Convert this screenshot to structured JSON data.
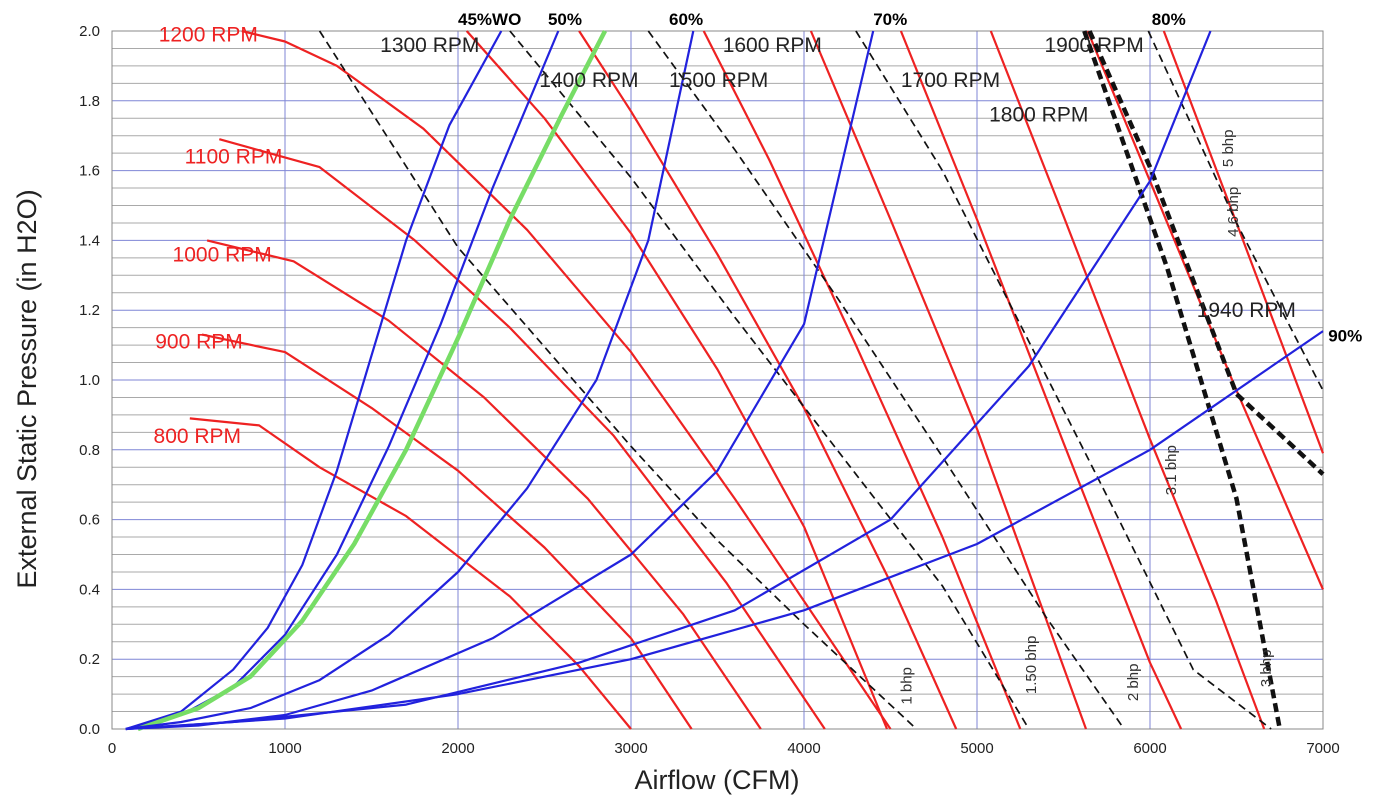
{
  "chart_data": {
    "type": "line",
    "title": "",
    "xlabel": "Airflow (CFM)",
    "ylabel": "External Static Pressure (in H2O)",
    "xlim": [
      0,
      7000
    ],
    "ylim": [
      0,
      2.0
    ],
    "x_ticks": [
      "0",
      "1000",
      "2000",
      "3000",
      "4000",
      "5000",
      "6000",
      "7000"
    ],
    "y_ticks": [
      "0.0",
      "0.2",
      "0.4",
      "0.6",
      "0.8",
      "1.0",
      "1.2",
      "1.4",
      "1.6",
      "1.8",
      "2.0"
    ],
    "grid": true,
    "colors": {
      "rpm": "#ee2222",
      "open": "#2222dd",
      "bhp": "#111111",
      "highlight": "#77dd66",
      "grid_major": "#7f86d6",
      "grid_minor": "#a9a9a9"
    },
    "rpm_curves": [
      {
        "name": "800 RPM",
        "label": "800 RPM",
        "label_at": [
          240,
          0.82
        ],
        "label_color": "#ee2222",
        "points": [
          [
            450,
            0.89
          ],
          [
            850,
            0.87
          ],
          [
            1200,
            0.75
          ],
          [
            1700,
            0.61
          ],
          [
            2300,
            0.38
          ],
          [
            2700,
            0.18
          ],
          [
            3000,
            0.0
          ]
        ]
      },
      {
        "name": "900 RPM",
        "label": "900 RPM",
        "label_at": [
          250,
          1.09
        ],
        "label_color": "#ee2222",
        "points": [
          [
            520,
            1.13
          ],
          [
            1000,
            1.08
          ],
          [
            1500,
            0.92
          ],
          [
            2000,
            0.74
          ],
          [
            2500,
            0.52
          ],
          [
            3000,
            0.26
          ],
          [
            3350,
            0.0
          ]
        ]
      },
      {
        "name": "1000 RPM",
        "label": "1000 RPM",
        "label_at": [
          350,
          1.34
        ],
        "label_color": "#ee2222",
        "points": [
          [
            550,
            1.4
          ],
          [
            1050,
            1.34
          ],
          [
            1600,
            1.17
          ],
          [
            2150,
            0.95
          ],
          [
            2750,
            0.66
          ],
          [
            3300,
            0.33
          ],
          [
            3750,
            0.0
          ]
        ]
      },
      {
        "name": "1100 RPM",
        "label": "1100 RPM",
        "label_at": [
          420,
          1.62
        ],
        "label_color": "#ee2222",
        "points": [
          [
            620,
            1.69
          ],
          [
            1200,
            1.61
          ],
          [
            1750,
            1.4
          ],
          [
            2300,
            1.15
          ],
          [
            2900,
            0.84
          ],
          [
            3550,
            0.42
          ],
          [
            4120,
            0.0
          ]
        ]
      },
      {
        "name": "1200 RPM",
        "label": "1200 RPM",
        "label_at": [
          270,
          1.97
        ],
        "label_color": "#ee2222",
        "points": [
          [
            750,
            2.0
          ],
          [
            1000,
            1.97
          ],
          [
            1300,
            1.9
          ],
          [
            1800,
            1.72
          ],
          [
            2400,
            1.43
          ],
          [
            3000,
            1.08
          ],
          [
            3600,
            0.66
          ],
          [
            4500,
            0.0
          ]
        ]
      },
      {
        "name": "1300 RPM",
        "label": "1300 RPM",
        "label_at": [
          1550,
          1.94
        ],
        "label_color": "#222222",
        "points": [
          [
            2050,
            2.0
          ],
          [
            2500,
            1.75
          ],
          [
            3000,
            1.42
          ],
          [
            3500,
            1.03
          ],
          [
            4000,
            0.58
          ],
          [
            4480,
            0.0
          ]
        ]
      },
      {
        "name": "1400 RPM",
        "label": "1400 RPM",
        "label_at": [
          2470,
          1.84
        ],
        "label_color": "#222222",
        "points": [
          [
            2700,
            2.0
          ],
          [
            3000,
            1.77
          ],
          [
            3500,
            1.36
          ],
          [
            4000,
            0.92
          ],
          [
            4500,
            0.42
          ],
          [
            4880,
            0.0
          ]
        ]
      },
      {
        "name": "1500 RPM",
        "label": "1500 RPM",
        "label_at": [
          3220,
          1.84
        ],
        "label_color": "#222222",
        "points": [
          [
            3420,
            2.0
          ],
          [
            3800,
            1.63
          ],
          [
            4300,
            1.1
          ],
          [
            4800,
            0.55
          ],
          [
            5250,
            0.0
          ]
        ]
      },
      {
        "name": "1600 RPM",
        "label": "1600 RPM",
        "label_at": [
          3530,
          1.94
        ],
        "label_color": "#222222",
        "points": [
          [
            4040,
            2.0
          ],
          [
            4500,
            1.46
          ],
          [
            5000,
            0.86
          ],
          [
            5630,
            0.0
          ]
        ]
      },
      {
        "name": "1700 RPM",
        "label": "1700 RPM",
        "label_at": [
          4560,
          1.84
        ],
        "label_color": "#222222",
        "points": [
          [
            4560,
            2.0
          ],
          [
            5000,
            1.46
          ],
          [
            5500,
            0.82
          ],
          [
            6000,
            0.19
          ],
          [
            6180,
            0.0
          ]
        ]
      },
      {
        "name": "1800 RPM",
        "label": "1800 RPM",
        "label_at": [
          5070,
          1.74
        ],
        "label_color": "#222222",
        "points": [
          [
            5080,
            2.0
          ],
          [
            5500,
            1.47
          ],
          [
            6000,
            0.83
          ],
          [
            6380,
            0.37
          ],
          [
            6660,
            0.0
          ]
        ]
      },
      {
        "name": "1900 RPM",
        "label": "1900 RPM",
        "label_at": [
          5390,
          1.94
        ],
        "label_color": "#222222",
        "points": [
          [
            5640,
            2.0
          ],
          [
            6000,
            1.57
          ],
          [
            6500,
            0.97
          ],
          [
            7000,
            0.4
          ]
        ]
      },
      {
        "name": "1940 RPM",
        "label": "1940 RPM",
        "label_at": [
          6270,
          1.18
        ],
        "label_color": "#222222",
        "points": [
          [
            6080,
            2.0
          ],
          [
            6500,
            1.45
          ],
          [
            7000,
            0.79
          ]
        ]
      }
    ],
    "wide_open_curves": [
      {
        "name": "45%WO",
        "label": "45%WO",
        "label_at": [
          2000,
          2.017
        ],
        "points": [
          [
            80,
            0.0
          ],
          [
            400,
            0.05
          ],
          [
            700,
            0.17
          ],
          [
            900,
            0.29
          ],
          [
            1100,
            0.47
          ],
          [
            1300,
            0.74
          ],
          [
            1500,
            1.07
          ],
          [
            1700,
            1.4
          ],
          [
            1950,
            1.73
          ],
          [
            2250,
            2.0
          ]
        ]
      },
      {
        "name": "50%",
        "label": "50%",
        "label_at": [
          2520,
          2.017
        ],
        "points": [
          [
            80,
            0.0
          ],
          [
            400,
            0.04
          ],
          [
            700,
            0.12
          ],
          [
            1000,
            0.27
          ],
          [
            1300,
            0.5
          ],
          [
            1600,
            0.81
          ],
          [
            1900,
            1.16
          ],
          [
            2200,
            1.55
          ],
          [
            2580,
            2.0
          ]
        ]
      },
      {
        "name": "WO highlight",
        "highlight": true,
        "points": [
          [
            150,
            0.0
          ],
          [
            500,
            0.06
          ],
          [
            800,
            0.15
          ],
          [
            1100,
            0.31
          ],
          [
            1400,
            0.53
          ],
          [
            1700,
            0.8
          ],
          [
            2000,
            1.12
          ],
          [
            2300,
            1.46
          ],
          [
            2600,
            1.76
          ],
          [
            2850,
            2.0
          ]
        ]
      },
      {
        "name": "60%",
        "label": "60%",
        "label_at": [
          3220,
          2.017
        ],
        "points": [
          [
            80,
            0.0
          ],
          [
            400,
            0.02
          ],
          [
            800,
            0.06
          ],
          [
            1200,
            0.14
          ],
          [
            1600,
            0.27
          ],
          [
            2000,
            0.45
          ],
          [
            2400,
            0.69
          ],
          [
            2800,
            1.0
          ],
          [
            3100,
            1.4
          ],
          [
            3360,
            2.0
          ]
        ]
      },
      {
        "name": "70%",
        "label": "70%",
        "label_at": [
          4400,
          2.017
        ],
        "points": [
          [
            80,
            0.0
          ],
          [
            500,
            0.01
          ],
          [
            1000,
            0.04
          ],
          [
            1500,
            0.11
          ],
          [
            2200,
            0.26
          ],
          [
            3000,
            0.5
          ],
          [
            3500,
            0.74
          ],
          [
            4000,
            1.16
          ],
          [
            4400,
            2.0
          ]
        ]
      },
      {
        "name": "80%",
        "label": "80%",
        "label_at": [
          6010,
          2.017
        ],
        "points": [
          [
            80,
            0.0
          ],
          [
            700,
            0.02
          ],
          [
            1700,
            0.07
          ],
          [
            2700,
            0.19
          ],
          [
            3600,
            0.34
          ],
          [
            4500,
            0.6
          ],
          [
            5300,
            1.04
          ],
          [
            6000,
            1.57
          ],
          [
            6350,
            2.0
          ]
        ]
      },
      {
        "name": "90%",
        "label": "90%",
        "label_at": [
          7030,
          1.11
        ],
        "points": [
          [
            80,
            0.0
          ],
          [
            1000,
            0.03
          ],
          [
            2000,
            0.1
          ],
          [
            3000,
            0.2
          ],
          [
            4000,
            0.34
          ],
          [
            5000,
            0.53
          ],
          [
            6000,
            0.8
          ],
          [
            7000,
            1.14
          ]
        ]
      }
    ],
    "bhp_curves": [
      {
        "name": "1 bhp",
        "label": "1 bhp",
        "label_at": [
          4620,
          0.07
        ],
        "bold": false,
        "points": [
          [
            1200,
            2.0
          ],
          [
            2000,
            1.38
          ],
          [
            3000,
            0.81
          ],
          [
            3500,
            0.54
          ],
          [
            4000,
            0.3
          ],
          [
            4650,
            0.0
          ]
        ]
      },
      {
        "name": "1.50 bhp",
        "label": "1.50 bhp",
        "label_at": [
          5340,
          0.1
        ],
        "bold": false,
        "points": [
          [
            2300,
            2.0
          ],
          [
            3000,
            1.58
          ],
          [
            3600,
            1.18
          ],
          [
            4300,
            0.73
          ],
          [
            4800,
            0.41
          ],
          [
            5300,
            0.0
          ]
        ]
      },
      {
        "name": "2 bhp",
        "label": "2 bhp",
        "label_at": [
          5930,
          0.08
        ],
        "bold": false,
        "points": [
          [
            3100,
            2.0
          ],
          [
            3600,
            1.66
          ],
          [
            4200,
            1.23
          ],
          [
            4800,
            0.78
          ],
          [
            5400,
            0.32
          ],
          [
            5850,
            0.0
          ]
        ]
      },
      {
        "name": "3.1 bhp",
        "label": "3.1 bhp",
        "label_at": [
          6150,
          0.67
        ],
        "bold": false,
        "points": [
          [
            4300,
            2.0
          ],
          [
            4800,
            1.6
          ],
          [
            5300,
            1.11
          ],
          [
            5800,
            0.62
          ],
          [
            6250,
            0.17
          ],
          [
            6700,
            0.0
          ]
        ]
      },
      {
        "name": "3 bhp",
        "label": "3 bhp",
        "label_at": [
          6700,
          0.12
        ],
        "bold": true,
        "points": [
          [
            5620,
            2.0
          ],
          [
            6100,
            1.32
          ],
          [
            6500,
            0.66
          ],
          [
            6750,
            0.0
          ]
        ]
      },
      {
        "name": "4.6 bhp",
        "label": "4.6 bhp",
        "label_at": [
          6510,
          1.41
        ],
        "bold": true,
        "points": [
          [
            5650,
            2.0
          ],
          [
            6000,
            1.61
          ],
          [
            6500,
            0.96
          ],
          [
            7000,
            0.73
          ]
        ]
      },
      {
        "name": "5 bhp",
        "label": "5 bhp",
        "label_at": [
          6480,
          1.61
        ],
        "bold": false,
        "points": [
          [
            5990,
            2.0
          ],
          [
            6500,
            1.45
          ],
          [
            7000,
            0.97
          ]
        ]
      }
    ]
  }
}
